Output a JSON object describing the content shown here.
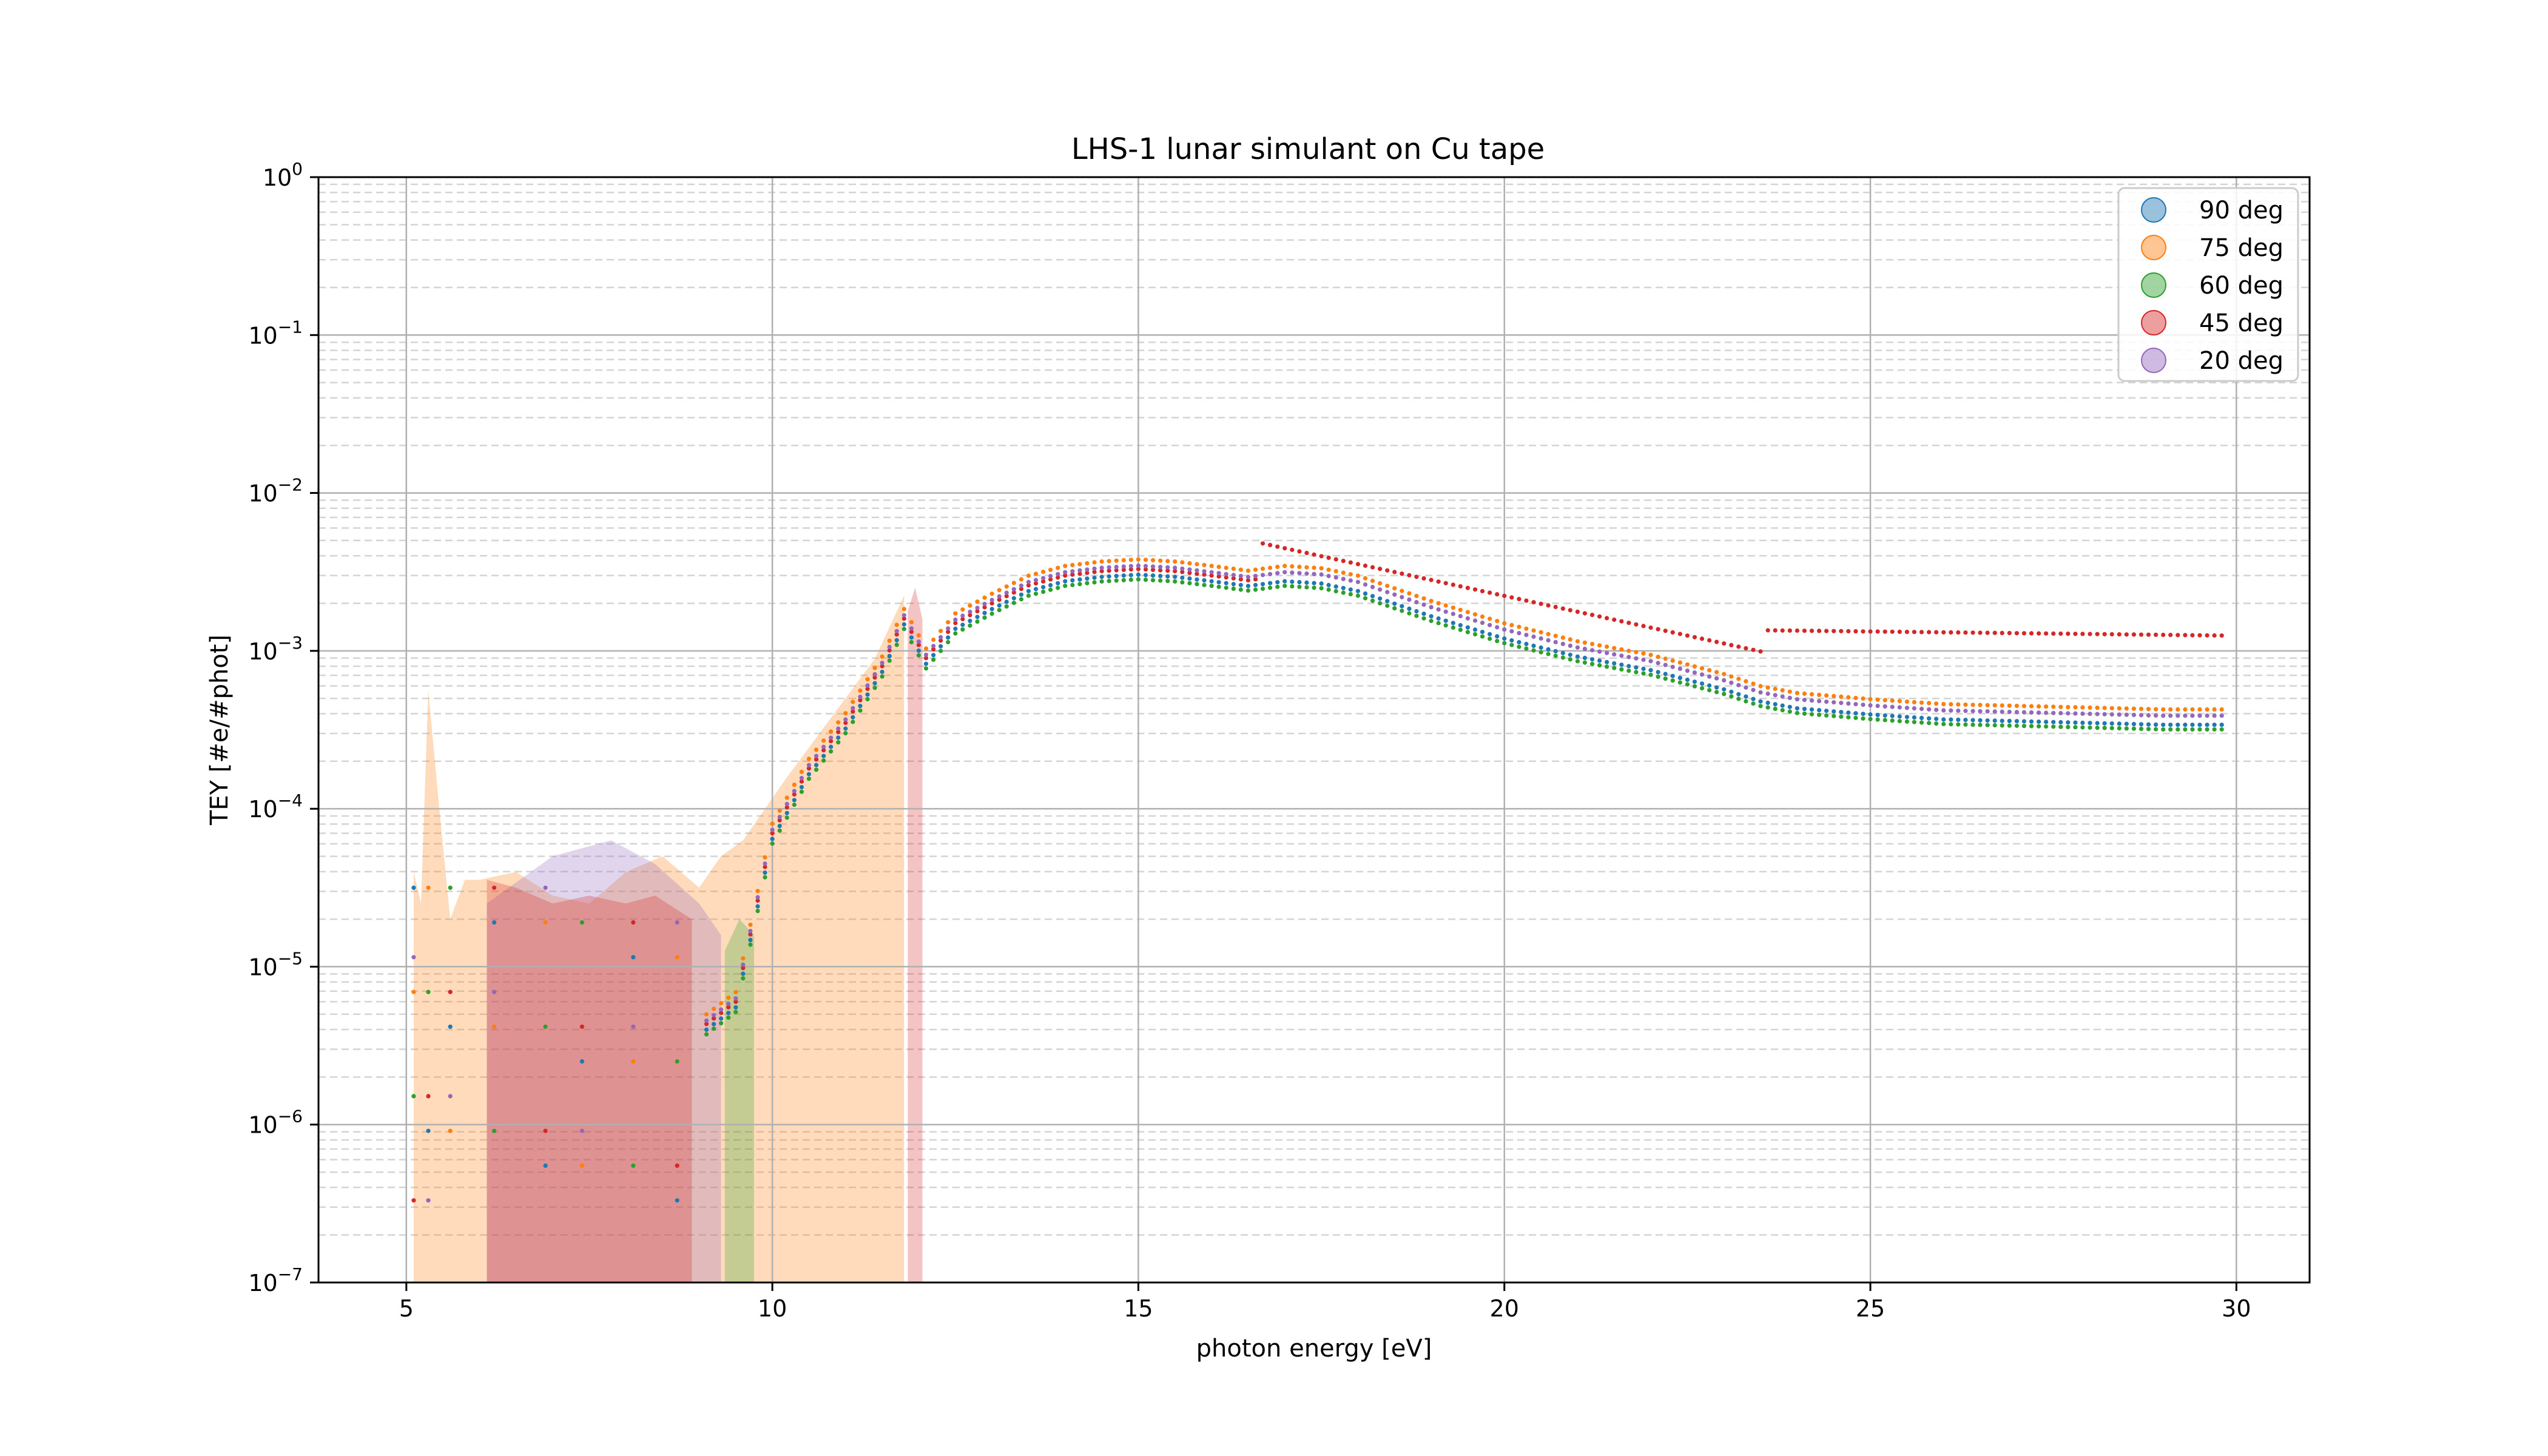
{
  "chart_data": {
    "type": "scatter",
    "title": "LHS-1 lunar simulant on Cu tape",
    "xlabel": "photon energy [eV]",
    "ylabel": "TEY [#e/#phot]",
    "xlim": [
      3.8,
      31.0
    ],
    "ylim_log10": [
      -7,
      0
    ],
    "y_scale": "log",
    "grid": true,
    "legend_position": "top-right",
    "x_ticks": [
      {
        "value": 5,
        "label": "5"
      },
      {
        "value": 10,
        "label": "10"
      },
      {
        "value": 15,
        "label": "15"
      },
      {
        "value": 20,
        "label": "20"
      },
      {
        "value": 25,
        "label": "25"
      },
      {
        "value": 30,
        "label": "30"
      }
    ],
    "y_ticks": [
      {
        "exp": 0,
        "base": "10",
        "power": "0"
      },
      {
        "exp": -1,
        "base": "10",
        "power": "−1"
      },
      {
        "exp": -2,
        "base": "10",
        "power": "−2"
      },
      {
        "exp": -3,
        "base": "10",
        "power": "−3"
      },
      {
        "exp": -4,
        "base": "10",
        "power": "−4"
      },
      {
        "exp": -5,
        "base": "10",
        "power": "−5"
      },
      {
        "exp": -6,
        "base": "10",
        "power": "−6"
      },
      {
        "exp": -7,
        "base": "10",
        "power": "−7"
      }
    ],
    "series": [
      {
        "name": "90 deg",
        "color": "#1f77b4",
        "scale": 0.92,
        "high_from": 99,
        "high_level": 0,
        "high_end": 0
      },
      {
        "name": "75 deg",
        "color": "#ff7f0e",
        "scale": 1.15,
        "high_from": 99,
        "high_level": 0,
        "high_end": 0
      },
      {
        "name": "60 deg",
        "color": "#2ca02c",
        "scale": 0.86,
        "high_from": 99,
        "high_level": 0,
        "high_end": 0
      },
      {
        "name": "45 deg",
        "color": "#d62728",
        "scale": 1.0,
        "high_from": 16.6,
        "high_level": 0.0049,
        "high_end": 0.00125
      },
      {
        "name": "20 deg",
        "color": "#9467bd",
        "scale": 1.05,
        "high_from": 99,
        "high_level": 0,
        "high_end": 0
      }
    ],
    "anchor_curve": {
      "energy": [
        5.0,
        6.0,
        7.0,
        8.0,
        9.0,
        9.5,
        10.0,
        10.5,
        11.0,
        11.5,
        11.8,
        12.1,
        12.5,
        13.0,
        13.5,
        14.0,
        14.5,
        15.0,
        15.5,
        16.0,
        16.5,
        17.0,
        17.5,
        18.0,
        19.0,
        20.0,
        21.0,
        22.0,
        23.0,
        23.5,
        24.0,
        25.0,
        26.0,
        27.0,
        28.0,
        29.0,
        29.8
      ],
      "tey": [
        2e-05,
        1.5e-05,
        9e-06,
        6e-06,
        4e-06,
        6e-06,
        7e-05,
        0.00018,
        0.00035,
        0.0008,
        0.0016,
        0.0009,
        0.0015,
        0.002,
        0.0026,
        0.003,
        0.0032,
        0.0033,
        0.0032,
        0.003,
        0.0028,
        0.003,
        0.0029,
        0.0026,
        0.0018,
        0.0013,
        0.001,
        0.00082,
        0.00062,
        0.00052,
        0.00047,
        0.00043,
        0.0004,
        0.00039,
        0.00038,
        0.00037,
        0.00037
      ]
    },
    "bands": [
      {
        "series": "75 deg",
        "color": "#ff7f0e",
        "x": [
          5.1,
          5.2,
          5.3,
          5.45,
          5.6,
          5.8,
          6.0,
          6.5,
          7.0,
          7.5,
          8.0,
          8.5,
          9.0,
          9.3,
          9.6,
          9.9,
          10.2,
          10.6,
          11.0,
          11.4,
          11.8
        ],
        "top": [
          -4.4,
          -4.6,
          -3.25,
          -4.0,
          -4.7,
          -4.45,
          -4.45,
          -4.4,
          -4.55,
          -4.6,
          -4.4,
          -4.3,
          -4.5,
          -4.3,
          -4.2,
          -4.0,
          -3.8,
          -3.55,
          -3.3,
          -3.05,
          -2.65
        ]
      },
      {
        "series": "20 deg",
        "color": "#9467bd",
        "x": [
          6.1,
          7.0,
          7.8,
          8.4,
          9.0,
          9.3
        ],
        "top": [
          -4.6,
          -4.3,
          -4.2,
          -4.35,
          -4.6,
          -4.8
        ]
      },
      {
        "series": "45 deg",
        "color": "#d62728",
        "x": [
          6.1,
          6.5,
          7.0,
          7.5,
          8.0,
          8.4,
          8.9
        ],
        "top": [
          -4.45,
          -4.5,
          -4.6,
          -4.55,
          -4.6,
          -4.55,
          -4.7
        ]
      },
      {
        "series": "60 deg",
        "color": "#2ca02c",
        "x": [
          9.35,
          9.55,
          9.75
        ],
        "top": [
          -4.9,
          -4.7,
          -4.8
        ]
      },
      {
        "series": "45 deg",
        "color": "#d62728",
        "x": [
          11.85,
          11.95,
          12.05
        ],
        "top": [
          -2.75,
          -2.6,
          -2.8
        ]
      }
    ]
  },
  "legend": {
    "items": [
      "90 deg",
      "75 deg",
      "60 deg",
      "45 deg",
      "20 deg"
    ]
  }
}
